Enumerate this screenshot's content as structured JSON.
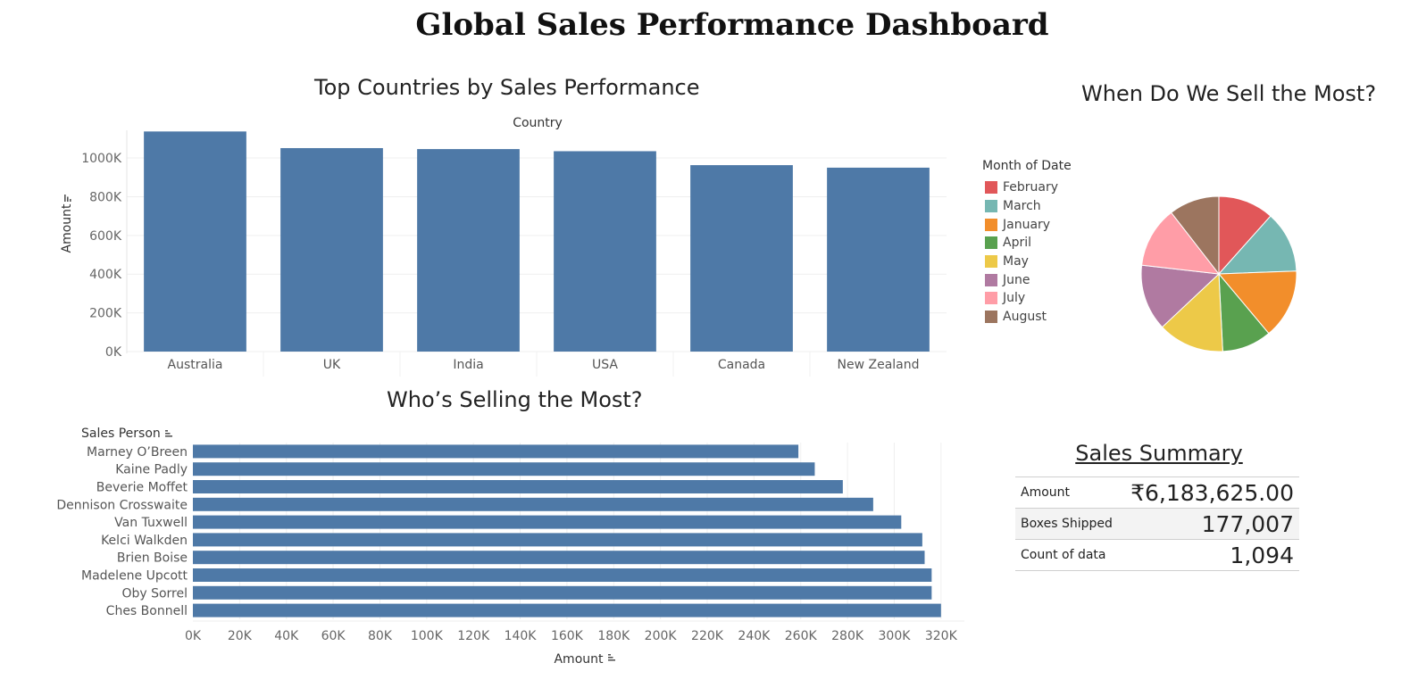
{
  "dashboard": {
    "title": "Global Sales Performance Dashboard"
  },
  "country_chart": {
    "title": "Top Countries by Sales Performance",
    "header": "Country",
    "ylabel": "Amount",
    "sort_icon": "sort-descending-icon"
  },
  "month_chart": {
    "title": "When Do We Sell the Most?",
    "legend_title": "Month of Date"
  },
  "sales_person_chart": {
    "title": "Who’s Selling the Most?",
    "row_header": "Sales Person",
    "xlabel": "Amount",
    "sort_icon": "sort-ascending-icon"
  },
  "summary": {
    "title": "Sales Summary",
    "rows": [
      {
        "label": "Amount",
        "value": "₹6,183,625.00"
      },
      {
        "label": "Boxes Shipped",
        "value": "177,007"
      },
      {
        "label": "Count of data",
        "value": "1,094"
      }
    ]
  },
  "chart_data": [
    {
      "type": "bar",
      "title": "Top Countries by Sales Performance",
      "xlabel": "Country",
      "ylabel": "Amount",
      "categories": [
        "Australia",
        "UK",
        "India",
        "USA",
        "Canada",
        "New Zealand"
      ],
      "values": [
        1137000,
        1051000,
        1046000,
        1035000,
        963000,
        950000
      ],
      "yticks": [
        0,
        200000,
        400000,
        600000,
        800000,
        1000000
      ],
      "ytick_labels": [
        "0K",
        "200K",
        "400K",
        "600K",
        "800K",
        "1000K"
      ],
      "ylim": [
        0,
        1180000
      ],
      "grid": true,
      "color": "#4e79a7"
    },
    {
      "type": "pie",
      "title": "When Do We Sell the Most?",
      "legend_title": "Month of Date",
      "legend": "left",
      "labels": [
        "February",
        "March",
        "January",
        "April",
        "May",
        "June",
        "July",
        "August"
      ],
      "values": [
        11.6,
        12.8,
        14.5,
        10.3,
        13.8,
        13.8,
        12.7,
        10.5
      ],
      "colors": [
        "#e15759",
        "#76b7b2",
        "#f28e2b",
        "#59a14f",
        "#edc948",
        "#b07aa1",
        "#ff9da7",
        "#9c755f"
      ]
    },
    {
      "type": "bar",
      "orientation": "horizontal",
      "title": "Who’s Selling the Most?",
      "ylabel": "Sales Person",
      "xlabel": "Amount",
      "categories": [
        "Marney O’Breen",
        "Kaine Padly",
        "Beverie Moffet",
        "Dennison Crosswaite",
        "Van Tuxwell",
        "Kelci Walkden",
        "Brien Boise",
        "Madelene Upcott",
        "Oby Sorrel",
        "Ches Bonnell"
      ],
      "values": [
        259000,
        266000,
        278000,
        291000,
        303000,
        312000,
        313000,
        316000,
        316000,
        320000
      ],
      "xticks": [
        0,
        20000,
        40000,
        60000,
        80000,
        100000,
        120000,
        140000,
        160000,
        180000,
        200000,
        220000,
        240000,
        260000,
        280000,
        300000,
        320000
      ],
      "xtick_labels": [
        "0K",
        "20K",
        "40K",
        "60K",
        "80K",
        "100K",
        "120K",
        "140K",
        "160K",
        "180K",
        "200K",
        "220K",
        "240K",
        "260K",
        "280K",
        "300K",
        "320K"
      ],
      "xlim": [
        0,
        330000
      ],
      "grid": true,
      "color": "#4e79a7"
    }
  ]
}
